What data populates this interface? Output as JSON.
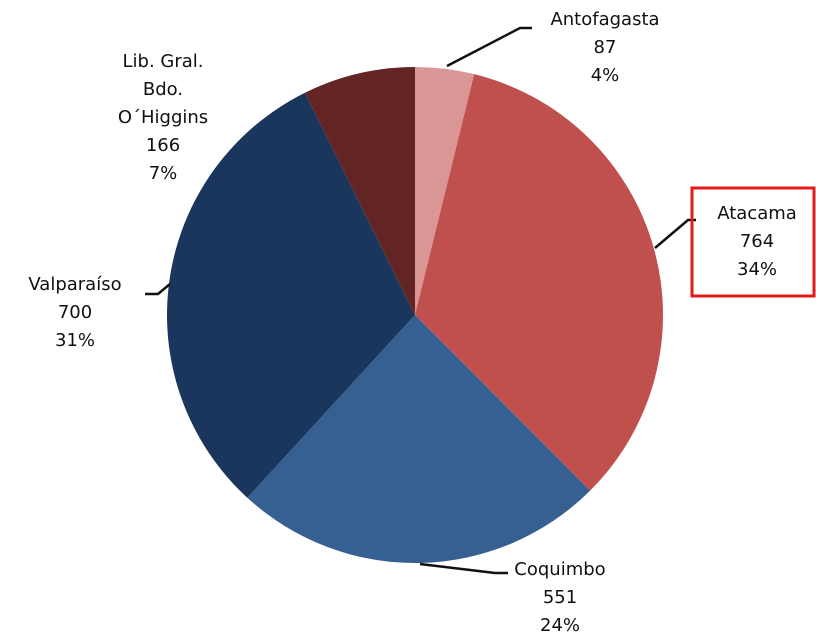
{
  "chart_data": {
    "type": "pie",
    "categories": [
      "Antofagasta",
      "Atacama",
      "Coquimbo",
      "Valparaíso",
      "Lib. Gral.\nBdo.\nO´Higgins"
    ],
    "values": [
      87,
      764,
      551,
      700,
      166
    ],
    "percent_labels": [
      "4%",
      "34%",
      "24%",
      "31%",
      "7%"
    ],
    "colors": [
      "#d99694",
      "#c0504d",
      "#376092",
      "#1a365d",
      "#632523"
    ]
  }
}
